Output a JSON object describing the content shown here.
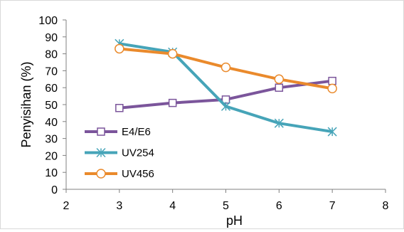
{
  "chart_data": {
    "type": "line",
    "title": "",
    "xlabel": "pH",
    "ylabel": "Penyisihan (%)",
    "xlim": [
      2,
      8
    ],
    "ylim": [
      0,
      100
    ],
    "x_ticks": [
      "2",
      "3",
      "4",
      "5",
      "6",
      "7",
      "8"
    ],
    "y_ticks": [
      "0",
      "10",
      "20",
      "30",
      "40",
      "50",
      "60",
      "70",
      "80",
      "90",
      "100"
    ],
    "grid": false,
    "legend": "left-middle",
    "x": [
      3,
      4,
      5,
      6,
      7
    ],
    "series": [
      {
        "name": "E4/E6",
        "color": "#7b559b",
        "marker": "square",
        "values": [
          48,
          51,
          53,
          60,
          64
        ]
      },
      {
        "name": "UV254",
        "color": "#46a4b8",
        "marker": "star",
        "values": [
          86,
          81,
          49,
          39,
          34
        ]
      },
      {
        "name": "UV456",
        "color": "#ea8a2c",
        "marker": "circle",
        "values": [
          83,
          80,
          72,
          65,
          59.5
        ]
      }
    ]
  }
}
